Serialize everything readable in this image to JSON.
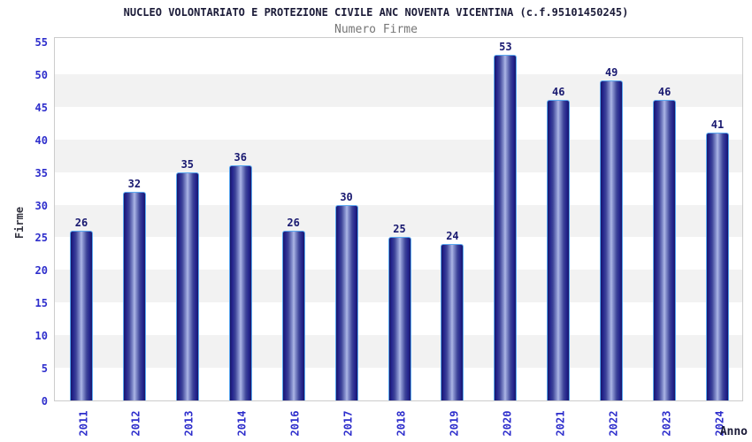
{
  "chart_data": {
    "type": "bar",
    "title": "NUCLEO VOLONTARIATO E PROTEZIONE CIVILE ANC NOVENTA VICENTINA (c.f.95101450245)",
    "subtitle": "Numero Firme",
    "xlabel": "Anno",
    "ylabel": "Firme",
    "categories": [
      "2011",
      "2012",
      "2013",
      "2014",
      "2016",
      "2017",
      "2018",
      "2019",
      "2020",
      "2021",
      "2022",
      "2023",
      "2024"
    ],
    "values": [
      26,
      32,
      35,
      36,
      26,
      30,
      25,
      24,
      53,
      46,
      49,
      46,
      41
    ],
    "ylim": [
      0,
      55
    ],
    "tick_step": 5,
    "legend": "none",
    "grid": "alternating-horizontal-bands",
    "colors": {
      "title": "#1b1b38",
      "subtitle": "#767676",
      "axis_tick_label": "#2e2ecc",
      "bar_value_label": "#191970",
      "bar_dark": "#191970",
      "bar_light": "#aeb8e6",
      "bar_border": "#5aa8f0",
      "band_gray": "#f2f2f2",
      "band_white": "#ffffff",
      "plot_border": "#cccccc"
    }
  }
}
